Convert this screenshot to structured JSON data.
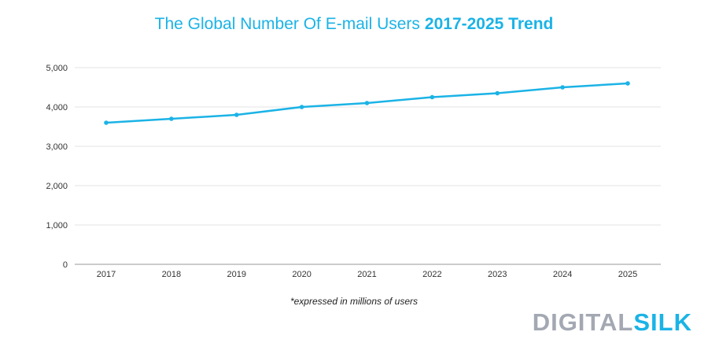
{
  "colors": {
    "title": "#1bb3e6",
    "line": "#1bb3e6",
    "grid": "#e3e3e3",
    "axis": "#9a9a9a",
    "logo_dark": "#a3a8b2",
    "logo_accent": "#1bb3e6"
  },
  "title_part1": "The Global Number Of E-mail Users",
  "title_part2": "2017-2025 Trend",
  "footnote": "*expressed in millions of users",
  "logo": {
    "part1": "DIGITAL",
    "part2": "SILK"
  },
  "chart_data": {
    "type": "line",
    "title": "The Global Number Of E-mail Users 2017-2025 Trend",
    "xlabel": "",
    "ylabel": "",
    "x": [
      "2017",
      "2018",
      "2019",
      "2020",
      "2021",
      "2022",
      "2023",
      "2024",
      "2025"
    ],
    "series": [
      {
        "values": [
          3600,
          3700,
          3800,
          4000,
          4100,
          4250,
          4350,
          4500,
          4600
        ]
      }
    ],
    "ylim": [
      0,
      5000
    ],
    "yticks": [
      0,
      1000,
      2000,
      3000,
      4000,
      5000
    ],
    "ytick_labels": [
      "0",
      "1,000",
      "2,000",
      "3,000",
      "4,000",
      "5,000"
    ],
    "grid": true,
    "legend": "none"
  }
}
